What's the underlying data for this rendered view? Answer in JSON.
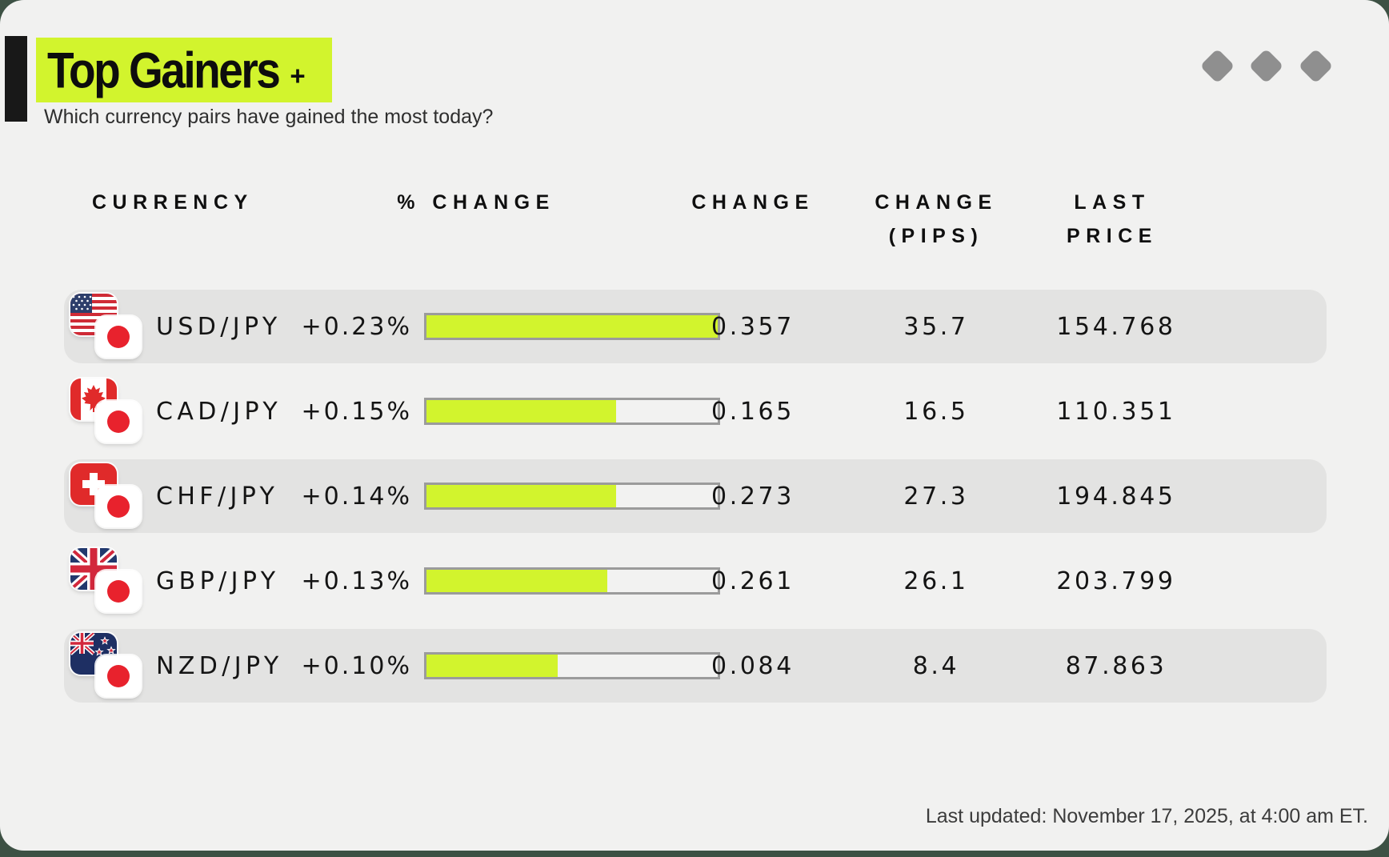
{
  "header": {
    "title": "Top Gainers",
    "title_suffix": "+",
    "subtitle": "Which currency pairs have gained the most today?"
  },
  "table": {
    "columns": {
      "currency": "CURRENCY",
      "pct_change": "% CHANGE",
      "change": "CHANGE",
      "pips_line1": "CHANGE",
      "pips_line2": "(PIPS)",
      "last_price": "LAST PRICE"
    }
  },
  "rows": [
    {
      "pair": "USD/JPY",
      "base_flag": "united-states",
      "quote_flag": "japan",
      "pct_change": "+0.23%",
      "fill_pct": 100,
      "change": "0.357",
      "pips": "35.7",
      "last_price": "154.768"
    },
    {
      "pair": "CAD/JPY",
      "base_flag": "canada",
      "quote_flag": "japan",
      "pct_change": "+0.15%",
      "fill_pct": 65,
      "change": "0.165",
      "pips": "16.5",
      "last_price": "110.351"
    },
    {
      "pair": "CHF/JPY",
      "base_flag": "switzerland",
      "quote_flag": "japan",
      "pct_change": "+0.14%",
      "fill_pct": 65,
      "change": "0.273",
      "pips": "27.3",
      "last_price": "194.845"
    },
    {
      "pair": "GBP/JPY",
      "base_flag": "united-kingdom",
      "quote_flag": "japan",
      "pct_change": "+0.13%",
      "fill_pct": 62,
      "change": "0.261",
      "pips": "26.1",
      "last_price": "203.799"
    },
    {
      "pair": "NZD/JPY",
      "base_flag": "new-zealand",
      "quote_flag": "japan",
      "pct_change": "+0.10%",
      "fill_pct": 45,
      "change": "0.084",
      "pips": "8.4",
      "last_price": "87.863"
    }
  ],
  "footer": {
    "last_updated": "Last updated: November 17, 2025, at 4:00 am ET."
  },
  "colors": {
    "accent_lime": "#d2f42d",
    "card_bg": "#f1f1f0",
    "row_shaded_bg": "#e3e3e2",
    "bar_border": "#9b9b9b",
    "bar_track": "#f2f2f1",
    "page_bg": "#3d5144",
    "diamond_gray": "#8f8f8f",
    "text_dark": "#141414"
  },
  "chart_data": {
    "type": "table",
    "title": "Top Gainers +",
    "subtitle": "Which currency pairs have gained the most today?",
    "columns": [
      "CURRENCY",
      "% CHANGE",
      "CHANGE",
      "CHANGE (PIPS)",
      "LAST PRICE"
    ],
    "rows": [
      [
        "USD/JPY",
        "+0.23%",
        "0.357",
        "35.7",
        "154.768"
      ],
      [
        "CAD/JPY",
        "+0.15%",
        "0.165",
        "16.5",
        "110.351"
      ],
      [
        "CHF/JPY",
        "+0.14%",
        "0.273",
        "27.3",
        "194.845"
      ],
      [
        "GBP/JPY",
        "+0.13%",
        "0.261",
        "26.1",
        "203.799"
      ],
      [
        "NZD/JPY",
        "+0.10%",
        "0.084",
        "8.4",
        "87.863"
      ]
    ],
    "embedded_bar": {
      "series_name": "% CHANGE",
      "categories": [
        "USD/JPY",
        "CAD/JPY",
        "CHF/JPY",
        "GBP/JPY",
        "NZD/JPY"
      ],
      "values": [
        0.23,
        0.15,
        0.14,
        0.13,
        0.1
      ],
      "axis_max": 0.23,
      "bar_color": "#d2f42d"
    }
  }
}
